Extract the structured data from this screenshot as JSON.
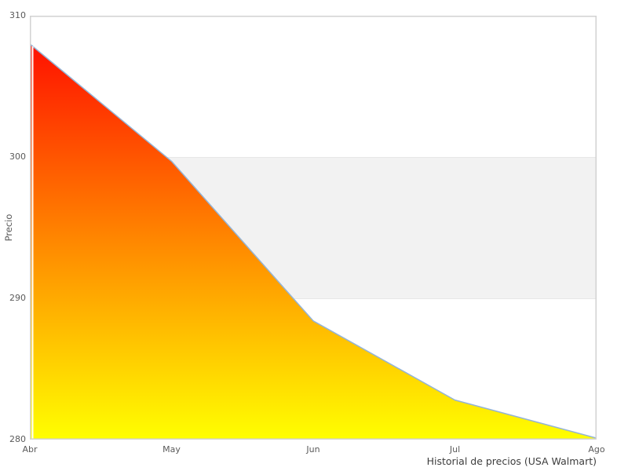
{
  "chart": {
    "caption": "Historial de precios (USA Walmart)",
    "y_axis": {
      "title": "Precio",
      "tick_labels": [
        "310",
        "300",
        "290",
        "280"
      ]
    },
    "x_axis": {
      "tick_labels": [
        "Abr",
        "May",
        "Jun",
        "Jul",
        "Ago"
      ]
    },
    "colors": {
      "gradient_top": "#ff0000",
      "gradient_bottom": "#ffff00",
      "line": "#94b4d6",
      "band_fill": "#f2f2f2",
      "band_edge": "#e7e7e7",
      "border": "#d2d2d2",
      "tick_text": "#5a5a5a",
      "caption_text": "#3d3d3d",
      "gap_line": "#ffffff"
    }
  },
  "chart_data": {
    "type": "area",
    "categories": [
      "Abr",
      "May",
      "Jun",
      "Jul",
      "Ago"
    ],
    "values": [
      308,
      299.7,
      288.4,
      282.8,
      280.1
    ],
    "title": "Historial de precios (USA Walmart)",
    "xlabel": "",
    "ylabel": "Precio",
    "ylim": [
      280,
      310
    ],
    "y_ticks": [
      310,
      300,
      290,
      280
    ],
    "plot_band": {
      "from": 290,
      "to": 300
    },
    "grid": false,
    "legend": false,
    "fill_gradient": [
      "#ff0000",
      "#ffff00"
    ],
    "line_color": "#94b4d6"
  }
}
